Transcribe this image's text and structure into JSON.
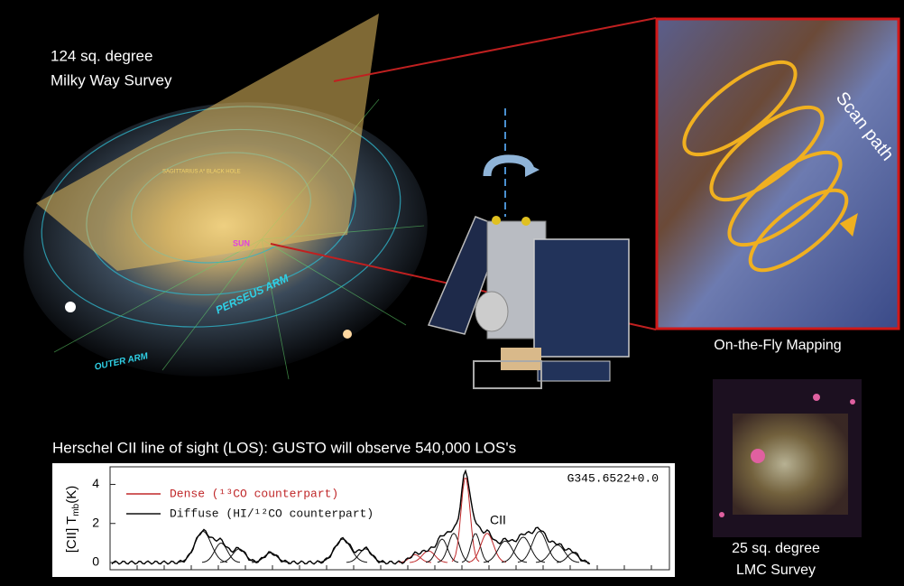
{
  "milky_way": {
    "title_line1": "124 sq. degree",
    "title_line2": "Milky Way Survey",
    "labels": [
      "SAGITTARIUS A* BLACK HOLE",
      "SUN",
      "PERSEUS ARM",
      "OUTER ARM"
    ]
  },
  "scan": {
    "path_label": "Scan path",
    "caption": "On-the-Fly Mapping"
  },
  "lmc": {
    "caption_line1": "25 sq. degree",
    "caption_line2": "LMC Survey"
  },
  "spectrum": {
    "heading": "Herschel CII line of sight (LOS): GUSTO will observe 540,000 LOS's",
    "ylabel": {
      "main": "[CII] T",
      "sub": "mb",
      "unit": "(K)"
    },
    "yticks": [
      0,
      2,
      4
    ],
    "ylim": [
      0,
      4.9
    ],
    "legend": [
      {
        "name": "Dense (¹³CO counterpart)",
        "color": "#c0282a"
      },
      {
        "name": "Diffuse (HI/¹²CO counterpart)",
        "color": "#111111"
      }
    ],
    "source": "G345.6522+0.0",
    "line_label": "CII"
  }
}
